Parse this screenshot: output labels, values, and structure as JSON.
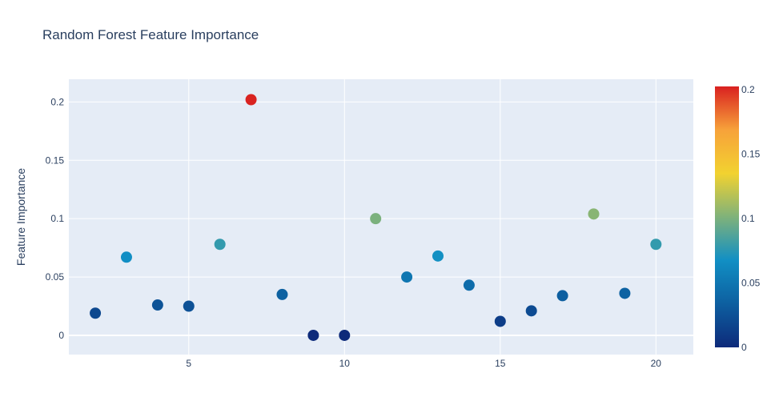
{
  "chart_data": {
    "type": "scatter",
    "title": "Random Forest Feature Importance",
    "xlabel": "",
    "ylabel": "Feature Importance",
    "xlim": [
      1.15,
      21.2
    ],
    "ylim": [
      -0.0165,
      0.2195
    ],
    "x_ticks": [
      5,
      10,
      15,
      20
    ],
    "y_ticks": [
      0,
      0.05,
      0.1,
      0.15,
      0.2
    ],
    "x_tick_labels": [
      "5",
      "10",
      "15",
      "20"
    ],
    "y_tick_labels": [
      "0",
      "0.05",
      "0.1",
      "0.15",
      "0.2"
    ],
    "grid": true,
    "background": "#e5ecf6",
    "marker_size": 7,
    "colorscale": [
      "#0d2a7a",
      "#0d5fa0",
      "#118fc4",
      "#7fb27a",
      "#f2d230",
      "#f7a23a",
      "#d92120"
    ],
    "colorbar": {
      "min": 0,
      "max": 0.2024,
      "ticks": [
        0,
        0.05,
        0.1,
        0.15,
        0.2
      ],
      "tick_labels": [
        "0",
        "0.05",
        "0.1",
        "0.15",
        "0.2"
      ]
    },
    "points": [
      {
        "x": 2,
        "y": 0.019
      },
      {
        "x": 3,
        "y": 0.067
      },
      {
        "x": 4,
        "y": 0.026
      },
      {
        "x": 5,
        "y": 0.025
      },
      {
        "x": 6,
        "y": 0.078
      },
      {
        "x": 7,
        "y": 0.202
      },
      {
        "x": 8,
        "y": 0.035
      },
      {
        "x": 9,
        "y": 0.0
      },
      {
        "x": 10,
        "y": 0.0
      },
      {
        "x": 11,
        "y": 0.1
      },
      {
        "x": 12,
        "y": 0.05
      },
      {
        "x": 13,
        "y": 0.068
      },
      {
        "x": 14,
        "y": 0.043
      },
      {
        "x": 15,
        "y": 0.012
      },
      {
        "x": 16,
        "y": 0.021
      },
      {
        "x": 17,
        "y": 0.034
      },
      {
        "x": 18,
        "y": 0.104
      },
      {
        "x": 19,
        "y": 0.036
      },
      {
        "x": 20,
        "y": 0.078
      }
    ]
  }
}
